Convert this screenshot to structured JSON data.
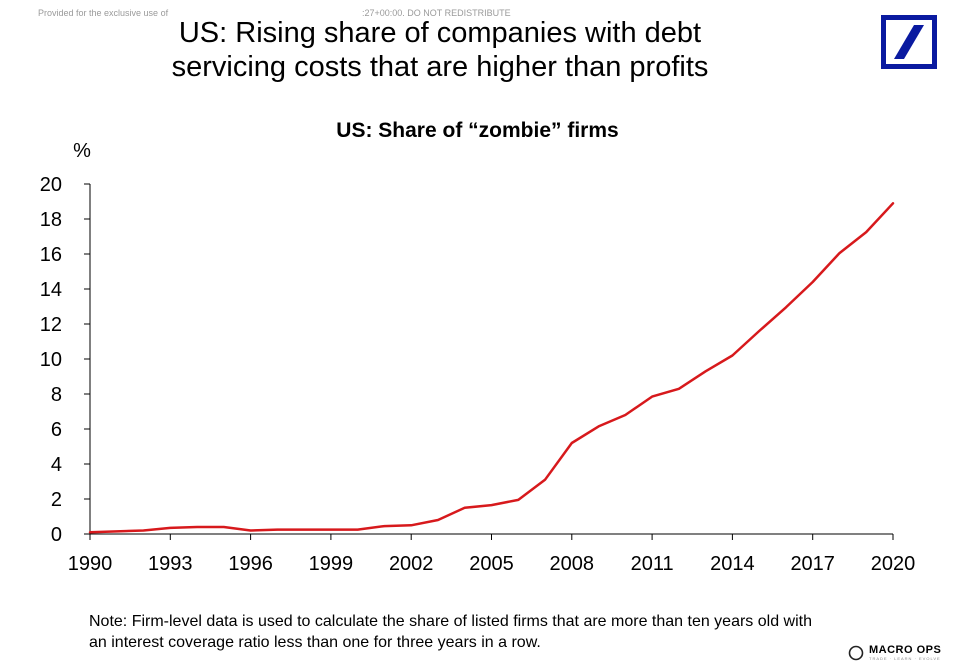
{
  "watermark": {
    "left": "Provided for the exclusive use of",
    "center": ":27+00:00. DO NOT REDISTRIBUTE"
  },
  "title": {
    "line1": "US: Rising share of companies with debt",
    "line2": "servicing costs that are higher than profits"
  },
  "logo": {
    "color": "#0a1aa0"
  },
  "note": {
    "line1": "Note: Firm-level data is used to calculate the share of listed firms that are more than ten years old with",
    "line2": "an interest coverage ratio less than one for three years in a row."
  },
  "brand": {
    "name": "MACRO OPS",
    "tagline": "TRADE · LEARN · EVOLVE"
  },
  "chart_data": {
    "type": "line",
    "title": "US: Share of “zombie” firms",
    "ylabel": "%",
    "xlabel": "",
    "xlim": [
      1990,
      2020
    ],
    "ylim": [
      0,
      20
    ],
    "xticks": [
      1990,
      1993,
      1996,
      1999,
      2002,
      2005,
      2008,
      2011,
      2014,
      2017,
      2020
    ],
    "yticks": [
      0,
      2,
      4,
      6,
      8,
      10,
      12,
      14,
      16,
      18,
      20
    ],
    "grid": false,
    "line_color": "#d7191c",
    "series": [
      {
        "x": [
          1990,
          1991,
          1992,
          1993,
          1994,
          1995,
          1996,
          1997,
          1998,
          1999,
          2000,
          2001,
          2002,
          2003,
          2004,
          2005,
          2006,
          2007,
          2008,
          2009,
          2010,
          2011,
          2012,
          2013,
          2014,
          2015,
          2016,
          2017,
          2018,
          2019,
          2020
        ],
        "values": [
          0.1,
          0.15,
          0.2,
          0.35,
          0.4,
          0.4,
          0.2,
          0.25,
          0.25,
          0.25,
          0.25,
          0.45,
          0.5,
          0.8,
          1.5,
          1.65,
          1.95,
          3.1,
          5.2,
          6.15,
          6.8,
          7.85,
          8.3,
          9.3,
          10.2,
          11.6,
          12.95,
          14.4,
          16.05,
          17.25,
          18.9
        ]
      }
    ]
  }
}
